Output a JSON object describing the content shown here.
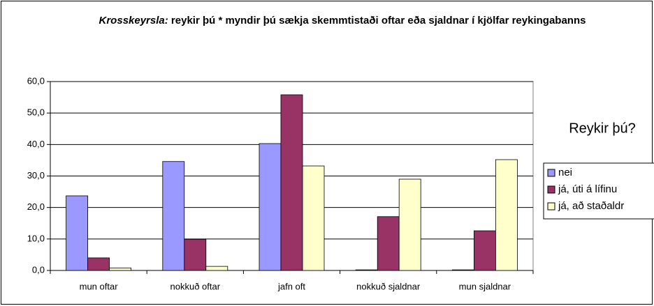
{
  "chart_data": {
    "type": "bar",
    "title": [
      "Krosskeyrsla:",
      "reykir þú * myndir þú sækja skemmtistaði oftar eða sjaldnar í kjölfar reykingabanns"
    ],
    "categories": [
      "mun oftar",
      "nokkuð oftar",
      "jafn oft",
      "nokkuð sjaldnar",
      "mun sjaldnar"
    ],
    "legend_title": "Reykir þú?",
    "series": [
      {
        "name": "nei",
        "color": "#9999ff",
        "values": [
          23.7,
          34.6,
          40.3,
          0.2,
          0.2
        ]
      },
      {
        "name": "já, úti á lífinu",
        "color": "#993366",
        "values": [
          4.0,
          9.9,
          55.8,
          17.1,
          12.6
        ]
      },
      {
        "name": "já, að staðaldr",
        "color": "#ffffcc",
        "values": [
          0.8,
          1.3,
          33.2,
          29.0,
          35.2
        ]
      }
    ],
    "ylim": [
      0,
      60
    ],
    "yticks": [
      {
        "value": 0,
        "label": "0,0"
      },
      {
        "value": 10,
        "label": "10,0"
      },
      {
        "value": 20,
        "label": "20,0"
      },
      {
        "value": 30,
        "label": "30,0"
      },
      {
        "value": 40,
        "label": "40,0"
      },
      {
        "value": 50,
        "label": "50,0"
      },
      {
        "value": 60,
        "label": "60,0"
      }
    ],
    "grid": true,
    "legend": "right"
  }
}
